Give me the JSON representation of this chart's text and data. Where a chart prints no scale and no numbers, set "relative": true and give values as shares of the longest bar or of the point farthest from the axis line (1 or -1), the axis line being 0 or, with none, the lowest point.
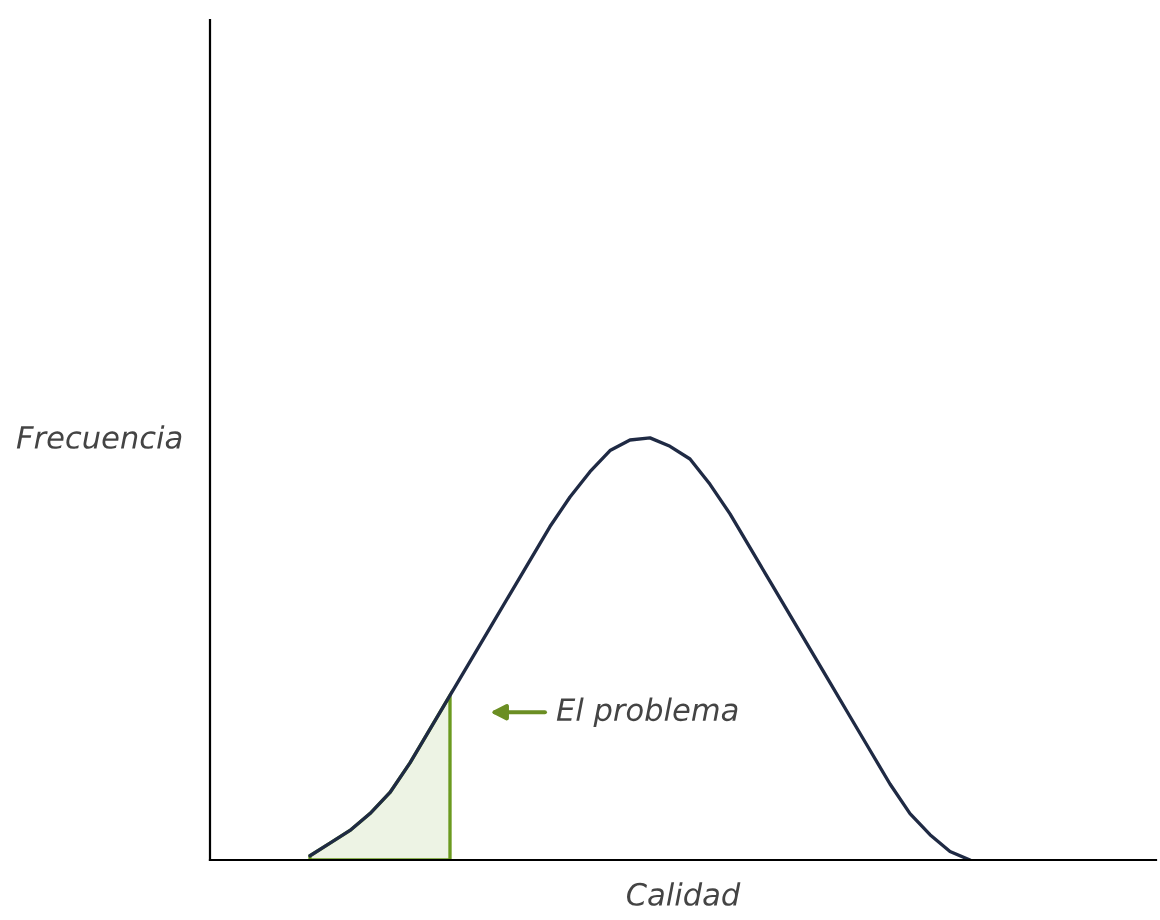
{
  "chart_data": {
    "type": "line",
    "relative": true,
    "xlabel": "Calidad",
    "ylabel": "Frecuencia",
    "categories": [
      null,
      null,
      null,
      null,
      null,
      null,
      null,
      null,
      null,
      null,
      null,
      null,
      null,
      null,
      null,
      null,
      null,
      null,
      null,
      null,
      null,
      null,
      null,
      null,
      null,
      null,
      null,
      null,
      null,
      null,
      null,
      null,
      null,
      null,
      null,
      null,
      null,
      null,
      null,
      null,
      null,
      null,
      null,
      null,
      null,
      null,
      null,
      null
    ],
    "series": [
      {
        "color": "#1f2a44",
        "values": [
          null,
          null,
          null,
          null,
          null,
          0.01,
          0.04,
          0.07,
          0.11,
          0.16,
          0.23,
          0.31,
          0.39,
          0.47,
          0.55,
          0.63,
          0.71,
          0.79,
          0.86,
          0.92,
          0.97,
          0.995,
          1.0,
          0.98,
          0.95,
          0.89,
          0.82,
          0.74,
          0.66,
          0.58,
          0.5,
          0.42,
          0.34,
          0.26,
          0.18,
          0.11,
          0.06,
          0.02,
          0.0,
          null,
          null,
          null,
          null,
          null,
          null,
          null,
          null,
          null
        ]
      },
      {
        "type": "area",
        "color": "#6b9a1f",
        "values": [
          null,
          null,
          null,
          null,
          null,
          0.01,
          0.04,
          0.07,
          0.11,
          0.16,
          0.23,
          0.31,
          0.39,
          null,
          null,
          null,
          null,
          null,
          null,
          null,
          null,
          null,
          null,
          null,
          null,
          null,
          null,
          null,
          null,
          null,
          null,
          null,
          null,
          null,
          null,
          null,
          null,
          null,
          null,
          null,
          null,
          null,
          null,
          null,
          null,
          null,
          null,
          null
        ]
      }
    ],
    "annotations": [
      "El problema"
    ],
    "legend": false
  }
}
